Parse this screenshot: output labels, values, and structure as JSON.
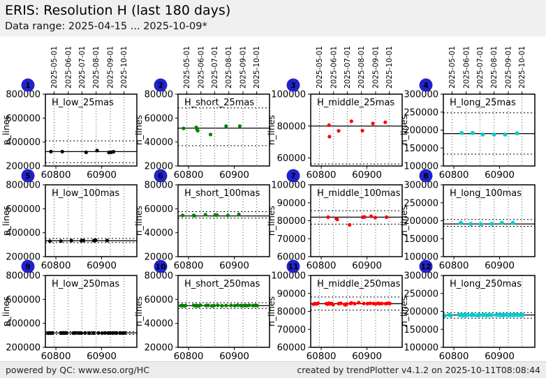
{
  "header": {
    "title": "ERIS: Resolution H (last 180 days)",
    "subtitle": "Data range: 2025-04-15 ... 2025-10-09*"
  },
  "footer": {
    "left": "powered by QC: www.eso.org/HC",
    "right": "created by trendPlotter v4.1.2 on 2025-10-11T08:08:44"
  },
  "colors": {
    "badge": "#2222cc",
    "band_bg": "#f0f0f0",
    "plot_bg": "#ffffff",
    "black": "#000000",
    "green": "#008000",
    "red": "#ff0000",
    "cyan": "#00ced1"
  },
  "axes": {
    "ylabel": "n_lines",
    "xlim": [
      60777,
      60977
    ],
    "x_ticks": [
      60800,
      60900
    ],
    "x_tick_labels": [
      "60800",
      "60900"
    ],
    "month_gridlines": [
      {
        "mjd": 60796,
        "label": "2025-05-01"
      },
      {
        "mjd": 60827,
        "label": "2025-06-01"
      },
      {
        "mjd": 60857,
        "label": "2025-07-01"
      },
      {
        "mjd": 60888,
        "label": "2025-08-01"
      },
      {
        "mjd": 60919,
        "label": "2025-09-01"
      },
      {
        "mjd": 60949,
        "label": "2025-10-01"
      }
    ]
  },
  "chart_data": [
    {
      "type": "scatter",
      "badge": "1",
      "label": "H_low_25mas",
      "color_key": "black",
      "ylim": [
        200000,
        800000
      ],
      "yticks": [
        800000,
        600000,
        400000,
        200000
      ],
      "ref_line": 320000,
      "dotted_lines": [
        410000,
        228000
      ],
      "points": [
        [
          60789,
          320000
        ],
        [
          60814,
          320000
        ],
        [
          60866,
          314000
        ],
        [
          60890,
          329000
        ],
        [
          60916,
          313000
        ],
        [
          60921,
          315000
        ],
        [
          60926,
          319000
        ]
      ]
    },
    {
      "type": "scatter",
      "badge": "2",
      "label": "H_short_25mas",
      "color_key": "green",
      "ylim": [
        20000,
        80000
      ],
      "yticks": [
        80000,
        60000,
        40000,
        20000
      ],
      "ref_line": 51600,
      "dotted_lines": [
        68500,
        37000
      ],
      "points": [
        [
          60789,
          51400
        ],
        [
          60817,
          52300
        ],
        [
          60818,
          51000
        ],
        [
          60820,
          49500
        ],
        [
          60848,
          46300
        ],
        [
          60882,
          53300
        ],
        [
          60912,
          53300
        ]
      ]
    },
    {
      "type": "scatter",
      "badge": "3",
      "label": "H_middle_25mas",
      "color_key": "red",
      "ylim": [
        55000,
        100000
      ],
      "yticks": [
        100000,
        80000,
        60000
      ],
      "ref_line": 80000,
      "dotted_lines": [
        56300
      ],
      "points": [
        [
          60817,
          80600
        ],
        [
          60818,
          73400
        ],
        [
          60838,
          77000
        ],
        [
          60866,
          83000
        ],
        [
          60890,
          77100
        ],
        [
          60913,
          81600
        ],
        [
          60940,
          82400
        ]
      ]
    },
    {
      "type": "scatter",
      "badge": "4",
      "label": "H_long_25mas",
      "color_key": "cyan",
      "ylim": [
        100000,
        300000
      ],
      "yticks": [
        300000,
        250000,
        200000,
        150000,
        100000
      ],
      "ref_line": 190000,
      "dotted_lines": [
        248000,
        133000
      ],
      "points": [
        [
          60817,
          192000
        ],
        [
          60841,
          192000
        ],
        [
          60863,
          187500
        ],
        [
          60888,
          187500
        ],
        [
          60912,
          187500
        ],
        [
          60938,
          191000
        ]
      ]
    },
    {
      "type": "scatter",
      "badge": "5",
      "label": "H_low_100mas",
      "color_key": "black",
      "ylim": [
        200000,
        800000
      ],
      "yticks": [
        800000,
        600000,
        400000,
        200000
      ],
      "ref_line": 333000,
      "dotted_lines": [
        352000,
        317000
      ],
      "points": [
        [
          60787,
          329000
        ],
        [
          60811,
          330000
        ],
        [
          60834,
          334000
        ],
        [
          60856,
          333000
        ],
        [
          60860,
          334500
        ],
        [
          60883,
          334000
        ],
        [
          60887,
          336500
        ],
        [
          60912,
          334500
        ]
      ]
    },
    {
      "type": "scatter",
      "badge": "6",
      "label": "H_short_100mas",
      "color_key": "green",
      "ylim": [
        20000,
        80000
      ],
      "yticks": [
        80000,
        60000,
        40000,
        20000
      ],
      "ref_line": 54000,
      "dotted_lines": [
        57600,
        52200
      ],
      "points": [
        [
          60787,
          54500
        ],
        [
          60811,
          54400
        ],
        [
          60813,
          54200
        ],
        [
          60837,
          55000
        ],
        [
          60858,
          54800
        ],
        [
          60862,
          54700
        ],
        [
          60886,
          54500
        ],
        [
          60910,
          55300
        ]
      ]
    },
    {
      "type": "scatter",
      "badge": "7",
      "label": "H_middle_100mas",
      "color_key": "red",
      "ylim": [
        60000,
        100000
      ],
      "yticks": [
        100000,
        90000,
        80000,
        70000,
        60000
      ],
      "ref_line": 82000,
      "dotted_lines": [
        85600,
        78100
      ],
      "points": [
        [
          60815,
          82000
        ],
        [
          60833,
          81100
        ],
        [
          60835,
          80700
        ],
        [
          60862,
          77700
        ],
        [
          60891,
          82000
        ],
        [
          60895,
          82100
        ],
        [
          60909,
          82500
        ],
        [
          60918,
          81700
        ],
        [
          60943,
          82000
        ]
      ]
    },
    {
      "type": "scatter",
      "badge": "8",
      "label": "H_long_100mas",
      "color_key": "cyan",
      "ylim": [
        100000,
        300000
      ],
      "yticks": [
        300000,
        250000,
        200000,
        150000,
        100000
      ],
      "ref_line": 191000,
      "dotted_lines": [
        203500,
        184500
      ],
      "points": [
        [
          60815,
          194000
        ],
        [
          60837,
          191000
        ],
        [
          60859,
          190500
        ],
        [
          60883,
          191500
        ],
        [
          60905,
          194000
        ],
        [
          60929,
          194000
        ]
      ]
    },
    {
      "type": "scatter",
      "badge": "9",
      "label": "H_low_250mas",
      "color_key": "black",
      "ylim": [
        200000,
        800000
      ],
      "yticks": [
        800000,
        600000,
        400000,
        200000
      ],
      "ref_line": 320000,
      "dotted_lines": [
        331000,
        308000
      ],
      "points": [
        [
          60783,
          319000
        ],
        [
          60786,
          320000
        ],
        [
          60789,
          318500
        ],
        [
          60792,
          320500
        ],
        [
          60811,
          320000
        ],
        [
          60814,
          319000
        ],
        [
          60817,
          321000
        ],
        [
          60820,
          319500
        ],
        [
          60823,
          320000
        ],
        [
          60838,
          319000
        ],
        [
          60843,
          320000
        ],
        [
          60851,
          319500
        ],
        [
          60856,
          318500
        ],
        [
          60864,
          320000
        ],
        [
          60873,
          319000
        ],
        [
          60882,
          319500
        ],
        [
          60893,
          320000
        ],
        [
          60901,
          318500
        ],
        [
          60907,
          320500
        ],
        [
          60914,
          319500
        ],
        [
          60919,
          320000
        ],
        [
          60924,
          319000
        ],
        [
          60928,
          320500
        ],
        [
          60933,
          319500
        ],
        [
          60941,
          320000
        ],
        [
          60946,
          319000
        ],
        [
          60950,
          320000
        ]
      ]
    },
    {
      "type": "scatter",
      "badge": "10",
      "label": "H_short_250mas",
      "color_key": "green",
      "ylim": [
        20000,
        80000
      ],
      "yticks": [
        80000,
        60000,
        40000,
        20000
      ],
      "ref_line": 54800,
      "dotted_lines": [
        57300,
        52500
      ],
      "points": [
        [
          60783,
          54700
        ],
        [
          60786,
          55000
        ],
        [
          60790,
          54600
        ],
        [
          60793,
          54900
        ],
        [
          60811,
          55100
        ],
        [
          60814,
          54700
        ],
        [
          60817,
          55000
        ],
        [
          60820,
          54500
        ],
        [
          60823,
          54800
        ],
        [
          60826,
          55200
        ],
        [
          60838,
          54900
        ],
        [
          60843,
          55000
        ],
        [
          60851,
          54600
        ],
        [
          60856,
          54800
        ],
        [
          60864,
          55100
        ],
        [
          60873,
          54700
        ],
        [
          60882,
          54900
        ],
        [
          60893,
          55000
        ],
        [
          60901,
          54800
        ],
        [
          60907,
          55200
        ],
        [
          60914,
          54900
        ],
        [
          60919,
          54700
        ],
        [
          60924,
          55000
        ],
        [
          60928,
          54800
        ],
        [
          60933,
          55100
        ],
        [
          60941,
          54900
        ],
        [
          60946,
          55000
        ],
        [
          60950,
          54800
        ]
      ]
    },
    {
      "type": "scatter",
      "badge": "11",
      "label": "H_middle_250mas",
      "color_key": "red",
      "ylim": [
        60000,
        100000
      ],
      "yticks": [
        100000,
        90000,
        80000,
        70000,
        60000
      ],
      "ref_line": 84300,
      "dotted_lines": [
        88000,
        80700
      ],
      "points": [
        [
          60783,
          84000
        ],
        [
          60786,
          84300
        ],
        [
          60790,
          84100
        ],
        [
          60793,
          84500
        ],
        [
          60811,
          84300
        ],
        [
          60814,
          84000
        ],
        [
          60817,
          84600
        ],
        [
          60820,
          84200
        ],
        [
          60823,
          84400
        ],
        [
          60826,
          83800
        ],
        [
          60838,
          84300
        ],
        [
          60843,
          84500
        ],
        [
          60851,
          83900
        ],
        [
          60853,
          83600
        ],
        [
          60856,
          84200
        ],
        [
          60864,
          84400
        ],
        [
          60866,
          84700
        ],
        [
          60873,
          84300
        ],
        [
          60882,
          84900
        ],
        [
          60893,
          84400
        ],
        [
          60901,
          84300
        ],
        [
          60907,
          84500
        ],
        [
          60914,
          84400
        ],
        [
          60919,
          84200
        ],
        [
          60924,
          84500
        ],
        [
          60928,
          84300
        ],
        [
          60933,
          84400
        ],
        [
          60941,
          84300
        ],
        [
          60946,
          84500
        ],
        [
          60950,
          84400
        ]
      ]
    },
    {
      "type": "scatter",
      "badge": "12",
      "label": "H_long_250mas",
      "color_key": "cyan",
      "ylim": [
        100000,
        300000
      ],
      "yticks": [
        300000,
        250000,
        200000,
        150000,
        100000
      ],
      "ref_line": 190000,
      "dotted_lines": [
        196500,
        181000
      ],
      "points": [
        [
          60780,
          188000
        ],
        [
          60790,
          190000
        ],
        [
          60793,
          189000
        ],
        [
          60811,
          190500
        ],
        [
          60814,
          189500
        ],
        [
          60817,
          190000
        ],
        [
          60820,
          189000
        ],
        [
          60823,
          190500
        ],
        [
          60826,
          189500
        ],
        [
          60830,
          190000
        ],
        [
          60838,
          189500
        ],
        [
          60843,
          190000
        ],
        [
          60851,
          189000
        ],
        [
          60856,
          190000
        ],
        [
          60864,
          189500
        ],
        [
          60866,
          190500
        ],
        [
          60873,
          189000
        ],
        [
          60876,
          190000
        ],
        [
          60882,
          189500
        ],
        [
          60893,
          190000
        ],
        [
          60896,
          190500
        ],
        [
          60901,
          189500
        ],
        [
          60904,
          190000
        ],
        [
          60907,
          189000
        ],
        [
          60910,
          190000
        ],
        [
          60914,
          190500
        ],
        [
          60919,
          189500
        ],
        [
          60924,
          190000
        ],
        [
          60928,
          189500
        ],
        [
          60933,
          190000
        ],
        [
          60936,
          190500
        ],
        [
          60941,
          189800
        ],
        [
          60946,
          190200
        ],
        [
          60950,
          190000
        ]
      ]
    }
  ]
}
